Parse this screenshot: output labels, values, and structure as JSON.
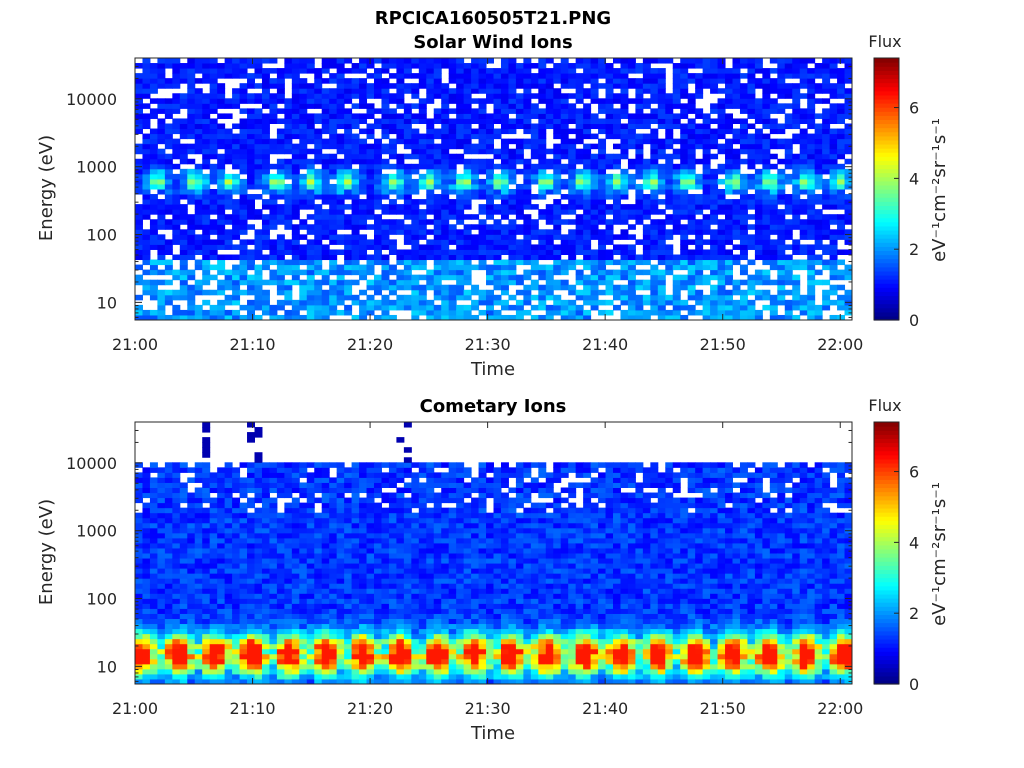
{
  "figure_title": "RPCICA160505T21.PNG",
  "colors": {
    "colormap": "jet",
    "missing": "#ffffff",
    "axes": "#262626"
  },
  "chart_data": [
    {
      "type": "heatmap",
      "title": "Solar Wind Ions",
      "xlabel": "Time",
      "ylabel": "Energy (eV)",
      "xlim": [
        "21:00",
        "22:01"
      ],
      "xticks": [
        "21:00",
        "21:10",
        "21:20",
        "21:30",
        "21:40",
        "21:50",
        "22:00"
      ],
      "ylim": [
        5.5,
        40000
      ],
      "yscale": "log",
      "yticks": [
        "10",
        "100",
        "1000",
        "10000"
      ],
      "grid": false,
      "colorbar": {
        "title": "Flux",
        "label": "eV⁻¹cm⁻²sr⁻¹s⁻¹",
        "range": [
          0,
          7.4
        ],
        "ticks": [
          "0",
          "2",
          "4",
          "6"
        ]
      },
      "features": {
        "background_level": 0.8,
        "beam_energy_eV": 600,
        "beam_peak_level": 3.8,
        "beam_times": [
          "21:02",
          "21:05",
          "21:08",
          "21:12",
          "21:15",
          "21:18",
          "21:22",
          "21:25",
          "21:28",
          "21:31",
          "21:35",
          "21:38",
          "21:41",
          "21:44",
          "21:47",
          "21:51",
          "21:54",
          "21:57",
          "22:00"
        ],
        "low_energy_level": 1.9
      }
    },
    {
      "type": "heatmap",
      "title": "Cometary Ions",
      "xlabel": "Time",
      "ylabel": "Energy (eV)",
      "xlim": [
        "21:00",
        "22:01"
      ],
      "xticks": [
        "21:00",
        "21:10",
        "21:20",
        "21:30",
        "21:40",
        "21:50",
        "22:00"
      ],
      "ylim": [
        5.5,
        40000
      ],
      "yscale": "log",
      "yticks": [
        "10",
        "100",
        "1000",
        "10000"
      ],
      "grid": false,
      "colorbar": {
        "title": "Flux",
        "label": "eV⁻¹cm⁻²sr⁻¹s⁻¹",
        "range": [
          0,
          7.4
        ],
        "ticks": [
          "0",
          "2",
          "4",
          "6"
        ]
      },
      "features": {
        "upper_energy_cutoff_eV": 11000,
        "background_level": 0.9,
        "low_energy_peak_eV": 15,
        "low_energy_peak_level": 4.5,
        "max_level": 6.3,
        "high_energy_spikes": [
          "21:06",
          "21:10",
          "21:23"
        ]
      }
    }
  ]
}
